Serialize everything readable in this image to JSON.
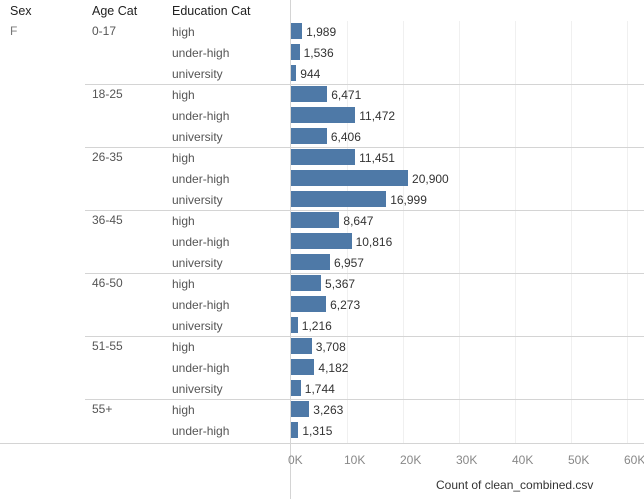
{
  "headers": {
    "sex": "Sex",
    "age": "Age Cat",
    "edu": "Education Cat"
  },
  "sex_value": "F",
  "groups": [
    {
      "age": "0-17",
      "rows": [
        {
          "edu": "high",
          "value": 1989,
          "label": "1,989"
        },
        {
          "edu": "under-high",
          "value": 1536,
          "label": "1,536"
        },
        {
          "edu": "university",
          "value": 944,
          "label": "944"
        }
      ]
    },
    {
      "age": "18-25",
      "rows": [
        {
          "edu": "high",
          "value": 6471,
          "label": "6,471"
        },
        {
          "edu": "under-high",
          "value": 11472,
          "label": "11,472"
        },
        {
          "edu": "university",
          "value": 6406,
          "label": "6,406"
        }
      ]
    },
    {
      "age": "26-35",
      "rows": [
        {
          "edu": "high",
          "value": 11451,
          "label": "11,451"
        },
        {
          "edu": "under-high",
          "value": 20900,
          "label": "20,900"
        },
        {
          "edu": "university",
          "value": 16999,
          "label": "16,999"
        }
      ]
    },
    {
      "age": "36-45",
      "rows": [
        {
          "edu": "high",
          "value": 8647,
          "label": "8,647"
        },
        {
          "edu": "under-high",
          "value": 10816,
          "label": "10,816"
        },
        {
          "edu": "university",
          "value": 6957,
          "label": "6,957"
        }
      ]
    },
    {
      "age": "46-50",
      "rows": [
        {
          "edu": "high",
          "value": 5367,
          "label": "5,367"
        },
        {
          "edu": "under-high",
          "value": 6273,
          "label": "6,273"
        },
        {
          "edu": "university",
          "value": 1216,
          "label": "1,216"
        }
      ]
    },
    {
      "age": "51-55",
      "rows": [
        {
          "edu": "high",
          "value": 3708,
          "label": "3,708"
        },
        {
          "edu": "under-high",
          "value": 4182,
          "label": "4,182"
        },
        {
          "edu": "university",
          "value": 1744,
          "label": "1,744"
        }
      ]
    },
    {
      "age": "55+",
      "rows": [
        {
          "edu": "high",
          "value": 3263,
          "label": "3,263"
        },
        {
          "edu": "under-high",
          "value": 1315,
          "label": "1,315"
        }
      ]
    }
  ],
  "chart_data": {
    "type": "bar",
    "orientation": "horizontal",
    "xlabel": "Count of clean_combined.csv",
    "xlim": [
      0,
      62000
    ],
    "ticks": [
      {
        "value": 0,
        "label": "0K"
      },
      {
        "value": 10000,
        "label": "10K"
      },
      {
        "value": 20000,
        "label": "20K"
      },
      {
        "value": 30000,
        "label": "30K"
      },
      {
        "value": 40000,
        "label": "40K"
      },
      {
        "value": 50000,
        "label": "50K"
      },
      {
        "value": 60000,
        "label": "60K"
      }
    ],
    "bar_color": "#4e79a7"
  }
}
